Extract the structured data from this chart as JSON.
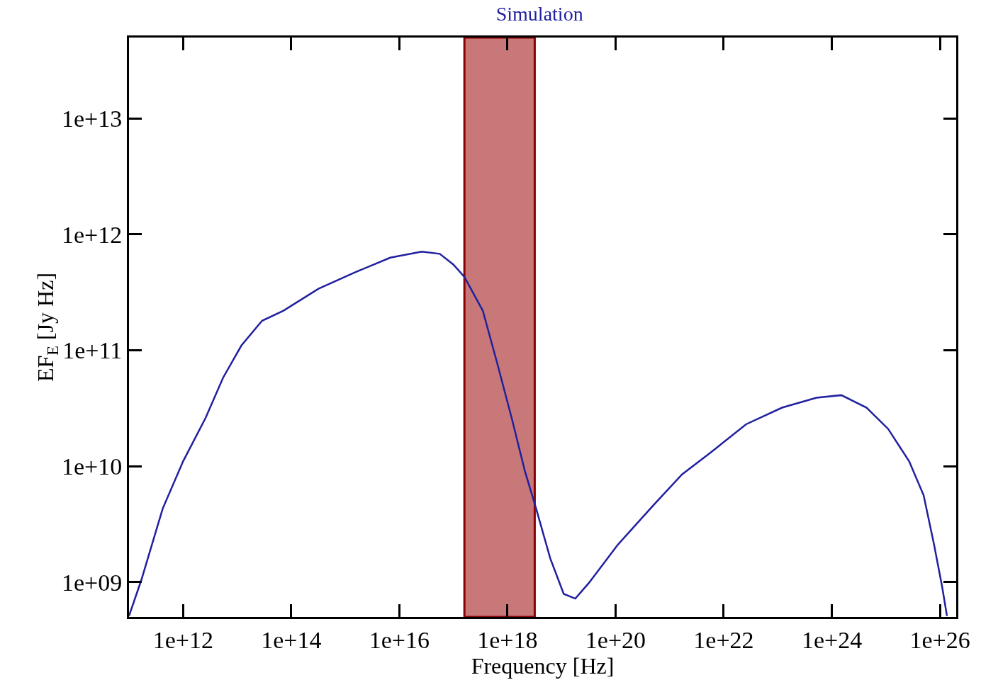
{
  "chart_data": {
    "type": "line",
    "title": "Simulation",
    "xlabel": "Frequency [Hz]",
    "ylabel": "EF$_{E}$ [Jy Hz]",
    "log": "xy",
    "grid": false,
    "marker": "none",
    "line_style": "solid",
    "xlim": [
      100000000000.0,
      2e+26
    ],
    "ylim": [
      500000000.0,
      50000000000000.0
    ],
    "xticks": [
      {
        "value": 1000000000000.0,
        "label": "1e+12"
      },
      {
        "value": 100000000000000.0,
        "label": "1e+14"
      },
      {
        "value": 1e+16,
        "label": "1e+16"
      },
      {
        "value": 1e+18,
        "label": "1e+18"
      },
      {
        "value": 1e+20,
        "label": "1e+20"
      },
      {
        "value": 1e+22,
        "label": "1e+22"
      },
      {
        "value": 1e+24,
        "label": "1e+24"
      },
      {
        "value": 1e+26,
        "label": "1e+26"
      }
    ],
    "yticks": [
      {
        "value": 1000000000.0,
        "label": "1e+09"
      },
      {
        "value": 10000000000.0,
        "label": "1e+10"
      },
      {
        "value": 100000000000.0,
        "label": "1e+11"
      },
      {
        "value": 1000000000000.0,
        "label": "1e+12"
      },
      {
        "value": 10000000000000.0,
        "label": "1e+13"
      }
    ],
    "bands": [
      {
        "axis": "x",
        "from": 1.6e+17,
        "to": 3.2e+18,
        "color": "#c87878"
      }
    ],
    "x": [
      100000000000.0,
      170000000000.0,
      420000000000.0,
      1000000000000.0,
      2600000000000.0,
      5500000000000.0,
      12000000000000.0,
      29000000000000.0,
      72000000000000.0,
      320000000000000.0,
      1500000000000000.0,
      6800000000000000.0,
      2.6e+16,
      5.6e+16,
      1e+17,
      1.6e+17,
      3.5e+17,
      6.3e+17,
      1.2e+18,
      2.1e+18,
      3.4e+18,
      6.2e+18,
      1.1e+19,
      1.8e+19,
      3.2e+19,
      1.1e+20,
      5e+20,
      1.7e+21,
      5.6e+21,
      2.6e+22,
      1.2e+23,
      5.2e+23,
      1.5e+24,
      4.4e+24,
      1.1e+25,
      2.7e+25,
      5e+25,
      7.8e+25,
      1.1e+26,
      1.35e+26
    ],
    "series": [
      {
        "color": "#2020a0",
        "values": [
          510000000.0,
          1050000000.0,
          4300000000.0,
          11000000000.0,
          26000000000.0,
          58000000000.0,
          110000000000.0,
          180000000000.0,
          220000000000.0,
          340000000000.0,
          470000000000.0,
          630000000000.0,
          710000000000.0,
          680000000000.0,
          550000000000.0,
          430000000000.0,
          220000000000.0,
          81000000000.0,
          26000000000.0,
          9100000000.0,
          4300000000.0,
          1600000000.0,
          790000000.0,
          720000000.0,
          980000000.0,
          2100000000.0,
          4600000000.0,
          8500000000.0,
          13000000000.0,
          23000000000.0,
          32000000000.0,
          39000000000.0,
          41000000000.0,
          32000000000.0,
          21000000000.0,
          11000000000.0,
          5600000000.0,
          2100000000.0,
          910000000.0,
          510000000.0
        ]
      }
    ]
  }
}
